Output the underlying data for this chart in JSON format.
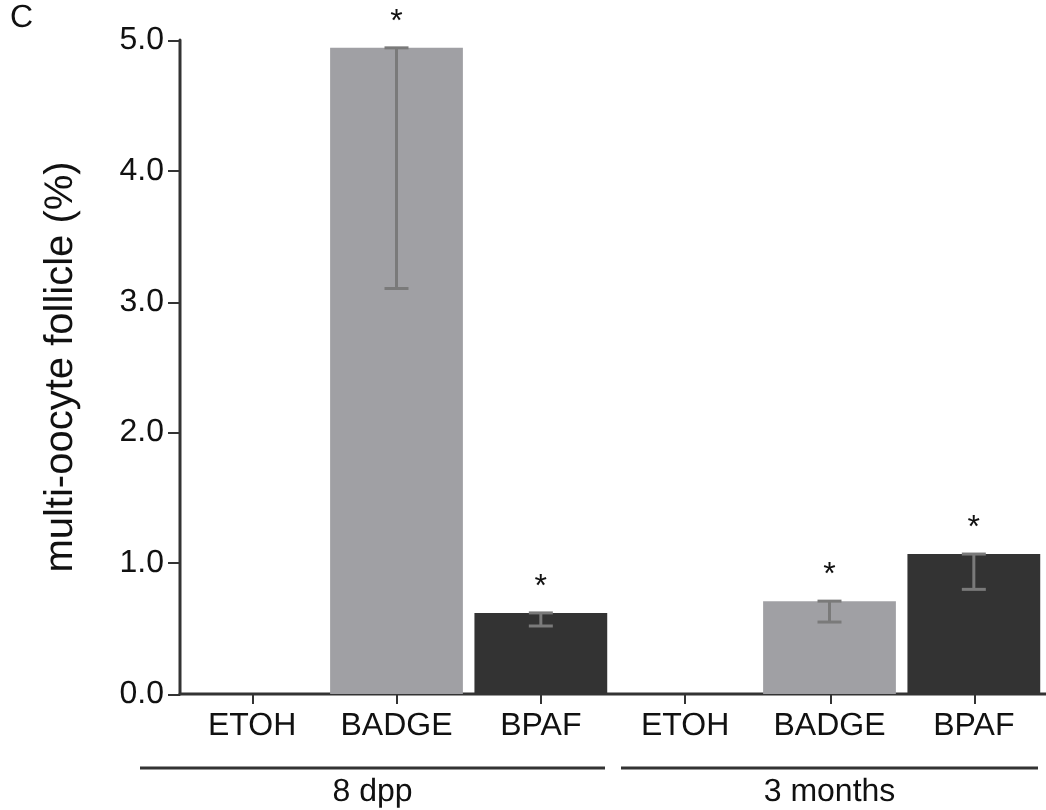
{
  "chart_data": {
    "type": "bar",
    "title": "C",
    "ylabel": "multi-oocyte follicle (%)",
    "categories": [
      "ETOH",
      "BADGE",
      "BPAF",
      "ETOH",
      "BADGE",
      "BPAF"
    ],
    "values": [
      0,
      4.94,
      0.62,
      0,
      0.71,
      1.07
    ],
    "colors": [
      "#a0a0a4",
      "#a0a0a4",
      "#333333",
      "#a0a0a4",
      "#a0a0a4",
      "#333333"
    ],
    "errors": [
      null,
      [
        3.1,
        4.94
      ],
      [
        0.52,
        0.62
      ],
      null,
      [
        0.55,
        0.71
      ],
      [
        0.8,
        1.07
      ]
    ],
    "ylim": [
      0,
      5
    ],
    "yticks": [
      {
        "value": 0,
        "label": "0.0"
      },
      {
        "value": 1,
        "label": "1.0"
      },
      {
        "value": 2,
        "label": "2.0"
      },
      {
        "value": 3,
        "label": "3.0"
      },
      {
        "value": 4,
        "label": "4.0"
      },
      {
        "value": 5,
        "label": "5.0"
      }
    ],
    "annotations": [
      "*",
      "*",
      "*",
      "*",
      "8 dpp",
      "3 months"
    ],
    "grid": false
  }
}
